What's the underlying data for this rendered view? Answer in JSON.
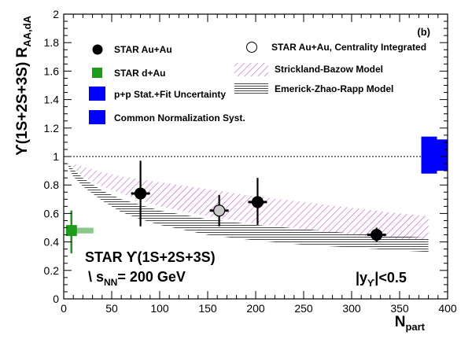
{
  "chart_data": {
    "type": "scatter",
    "panel_label": "(b)",
    "xlabel_main": "N",
    "xlabel_sub": "part",
    "ylabel_main": "ϒ(1S+2S+3S) R",
    "ylabel_sub": "AA,dA",
    "xlim": [
      0,
      400
    ],
    "ylim": [
      0,
      2
    ],
    "x_ticks": [
      "0",
      "50",
      "100",
      "150",
      "200",
      "250",
      "300",
      "350",
      "400"
    ],
    "y_ticks": [
      "0",
      "0.2",
      "0.4",
      "0.6",
      "0.8",
      "1",
      "1.2",
      "1.4",
      "1.6",
      "1.8",
      "2"
    ],
    "reference_line": 1.0,
    "annotations": {
      "experiment": "STAR ϒ(1S+2S+3S)",
      "energy_prefix": "\\ s",
      "energy_sub": "NN",
      "energy_value": "= 200 GeV",
      "rapidity_main": "|y",
      "rapidity_sub": "ϒ",
      "rapidity_cut": "|<0.5"
    },
    "legend": {
      "au_au": "STAR Au+Au",
      "d_au": "STAR d+Au",
      "pp_unc": "p+p Stat.+Fit Uncertainty",
      "norm_syst": "Common Normalization Syst.",
      "au_au_integrated": "STAR Au+Au, Centrality Integrated",
      "strickland": "Strickland-Bazow Model",
      "emerick": "Emerick-Zhao-Rapp Model"
    },
    "series": [
      {
        "name": "STAR Au+Au",
        "color": "#000000",
        "points": [
          {
            "x": 80,
            "y": 0.74,
            "y_low": 0.51,
            "y_high": 0.97,
            "sys": 0.03
          },
          {
            "x": 202,
            "y": 0.68,
            "y_low": 0.52,
            "y_high": 0.85,
            "sys": 0.02
          },
          {
            "x": 326,
            "y": 0.45,
            "y_low": 0.4,
            "y_high": 0.5,
            "sys": 0.02
          }
        ]
      },
      {
        "name": "STAR Au+Au, Centrality Integrated",
        "color": "#c8c8c8",
        "points": [
          {
            "x": 162,
            "y": 0.62,
            "y_low": 0.51,
            "y_high": 0.73,
            "sys": 0.02
          }
        ]
      },
      {
        "name": "STAR d+Au",
        "color": "#1a9e1a",
        "points": [
          {
            "x": 8,
            "y": 0.48,
            "y_low": 0.32,
            "y_high": 0.62,
            "sys": 0.02
          }
        ]
      }
    ],
    "pp_uncertainty_band": {
      "x": 375,
      "y_low": 0.88,
      "y_high": 1.14,
      "color": "#0000ff"
    },
    "norm_syst_band": {
      "x": 388,
      "y_low": 0.9,
      "y_high": 1.12,
      "color": "#0000ff"
    },
    "models": [
      {
        "name": "Strickland-Bazow Model",
        "color": "#cc33cc",
        "x": [
          10,
          20,
          40,
          60,
          80,
          100,
          150,
          200,
          250,
          300,
          350,
          380
        ],
        "upper": [
          0.95,
          0.93,
          0.89,
          0.86,
          0.84,
          0.82,
          0.77,
          0.72,
          0.68,
          0.64,
          0.6,
          0.58
        ],
        "lower": [
          0.92,
          0.86,
          0.79,
          0.74,
          0.69,
          0.65,
          0.58,
          0.53,
          0.49,
          0.45,
          0.42,
          0.41
        ]
      },
      {
        "name": "Emerick-Zhao-Rapp Model",
        "color": "#444444",
        "x": [
          5,
          10,
          20,
          40,
          60,
          80,
          100,
          150,
          200,
          250,
          300,
          350,
          380
        ],
        "upper": [
          0.95,
          0.91,
          0.85,
          0.76,
          0.7,
          0.66,
          0.62,
          0.56,
          0.52,
          0.49,
          0.46,
          0.44,
          0.43
        ],
        "lower": [
          0.92,
          0.86,
          0.79,
          0.69,
          0.61,
          0.56,
          0.52,
          0.45,
          0.41,
          0.38,
          0.36,
          0.34,
          0.33
        ]
      }
    ]
  }
}
